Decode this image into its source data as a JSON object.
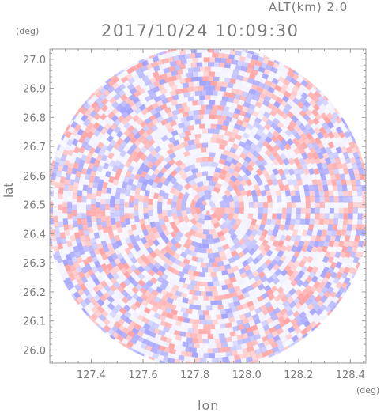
{
  "header": {
    "altitude_label": "ALT(km)  2.0",
    "timestamp": "2017/10/24 10:09:30"
  },
  "axes": {
    "y_unit": "(deg)",
    "x_unit": "(deg)",
    "y_label": "lat",
    "x_label": "lon",
    "x_ticks": [
      "127.4",
      "127.6",
      "127.8",
      "128.0",
      "128.2",
      "128.4"
    ],
    "y_ticks": [
      "27.0",
      "26.9",
      "26.8",
      "26.7",
      "26.6",
      "26.5",
      "26.4",
      "26.3",
      "26.2",
      "26.1",
      "26.0"
    ],
    "x_range": [
      127.24,
      128.46
    ],
    "y_range": [
      25.955,
      27.035
    ]
  },
  "radar": {
    "center_lon": 127.85,
    "center_lat": 26.49,
    "positive_color": "#ff9a9a",
    "negative_color": "#9a9aff",
    "neutral_color": "#f2f2ff"
  }
}
